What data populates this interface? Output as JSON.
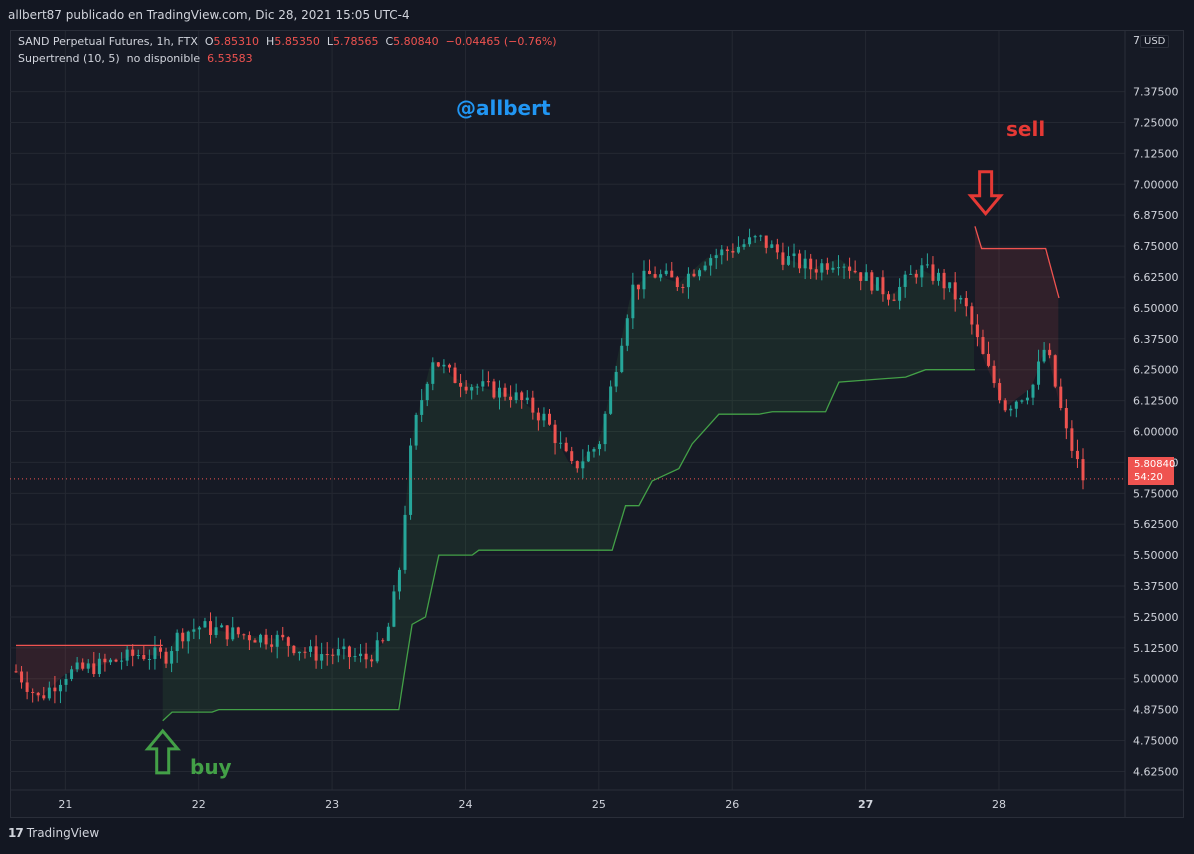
{
  "header": {
    "publish_line": "allbert87 publicado en TradingView.com, Dic 28, 2021 15:05 UTC-4"
  },
  "legend": {
    "symbol": "SAND Perpetual Futures, 1h, FTX",
    "o_label": "O",
    "o_value": "5.85310",
    "h_label": "H",
    "h_value": "5.85350",
    "l_label": "L",
    "l_value": "5.78565",
    "c_label": "C",
    "c_value": "5.80840",
    "change": "−0.04465 (−0.76%)",
    "indicator": "Supertrend (10, 5)",
    "indicator_status": "no disponible",
    "indicator_value": "6.53583"
  },
  "annotations": {
    "handle": "@allbert",
    "sell": "sell",
    "buy": "buy"
  },
  "price_axis": {
    "currency": "USD",
    "last_price": "5.80840",
    "countdown": "54:20",
    "top_label": "7"
  },
  "footer": {
    "brand": "TradingView",
    "logo_mark": "17"
  },
  "colors": {
    "up": "#26a69a",
    "down": "#ef5350",
    "supertrend_up": "#43a047",
    "supertrend_down": "#ef5350",
    "background": "#161a25",
    "grid": "#242832"
  },
  "chart_data": {
    "type": "candlestick",
    "y_axis": {
      "range": [
        4.55,
        7.62
      ],
      "ticks": [
        "7.37500",
        "7.25000",
        "7.12500",
        "7.00000",
        "6.87500",
        "6.75000",
        "6.62500",
        "6.50000",
        "6.37500",
        "6.25000",
        "6.12500",
        "6.00000",
        "5.87500",
        "5.75000",
        "5.62500",
        "5.50000",
        "5.37500",
        "5.25000",
        "5.12500",
        "5.00000",
        "4.87500",
        "4.75000",
        "4.62500"
      ],
      "tick_values": [
        7.375,
        7.25,
        7.125,
        7.0,
        6.875,
        6.75,
        6.625,
        6.5,
        6.375,
        6.25,
        6.125,
        6.0,
        5.875,
        5.75,
        5.625,
        5.5,
        5.375,
        5.25,
        5.125,
        5.0,
        4.875,
        4.75,
        4.625
      ]
    },
    "x_axis": {
      "ticks": [
        "21",
        "22",
        "23",
        "24",
        "25",
        "26",
        "27",
        "28"
      ],
      "tick_days": [
        21,
        22,
        23,
        24,
        25,
        26,
        27,
        28
      ],
      "day_start": 20.63,
      "day_end": 28.63
    },
    "price_path": [
      [
        20.63,
        5.03
      ],
      [
        20.8,
        4.92
      ],
      [
        21.0,
        5.02
      ],
      [
        21.3,
        5.06
      ],
      [
        21.55,
        5.1
      ],
      [
        21.75,
        5.09
      ],
      [
        21.85,
        5.18
      ],
      [
        22.0,
        5.21
      ],
      [
        22.3,
        5.18
      ],
      [
        22.6,
        5.16
      ],
      [
        22.85,
        5.1
      ],
      [
        23.05,
        5.1
      ],
      [
        23.25,
        5.08
      ],
      [
        23.4,
        5.15
      ],
      [
        23.5,
        5.42
      ],
      [
        23.6,
        5.98
      ],
      [
        23.75,
        6.3
      ],
      [
        23.9,
        6.22
      ],
      [
        24.1,
        6.18
      ],
      [
        24.35,
        6.15
      ],
      [
        24.6,
        6.05
      ],
      [
        24.8,
        5.85
      ],
      [
        25.0,
        5.95
      ],
      [
        25.1,
        6.2
      ],
      [
        25.25,
        6.58
      ],
      [
        25.4,
        6.64
      ],
      [
        25.6,
        6.6
      ],
      [
        25.8,
        6.7
      ],
      [
        26.0,
        6.74
      ],
      [
        26.2,
        6.78
      ],
      [
        26.4,
        6.7
      ],
      [
        26.6,
        6.66
      ],
      [
        26.8,
        6.7
      ],
      [
        27.0,
        6.62
      ],
      [
        27.2,
        6.55
      ],
      [
        27.4,
        6.66
      ],
      [
        27.55,
        6.62
      ],
      [
        27.75,
        6.5
      ],
      [
        27.9,
        6.27
      ],
      [
        28.05,
        6.1
      ],
      [
        28.25,
        6.18
      ],
      [
        28.35,
        6.35
      ],
      [
        28.5,
        6.0
      ],
      [
        28.63,
        5.81
      ]
    ],
    "supertrend_down_1": [
      [
        20.63,
        5.135
      ],
      [
        21.73,
        5.135
      ]
    ],
    "supertrend_up": [
      [
        21.73,
        4.83
      ],
      [
        21.8,
        4.865
      ],
      [
        22.1,
        4.865
      ],
      [
        22.15,
        4.875
      ],
      [
        23.5,
        4.875
      ],
      [
        23.55,
        5.05
      ],
      [
        23.6,
        5.22
      ],
      [
        23.7,
        5.25
      ],
      [
        23.8,
        5.5
      ],
      [
        24.05,
        5.5
      ],
      [
        24.1,
        5.52
      ],
      [
        25.1,
        5.52
      ],
      [
        25.2,
        5.7
      ],
      [
        25.3,
        5.7
      ],
      [
        25.4,
        5.8
      ],
      [
        25.6,
        5.85
      ],
      [
        25.7,
        5.95
      ],
      [
        25.8,
        6.01
      ],
      [
        25.9,
        6.07
      ],
      [
        26.2,
        6.07
      ],
      [
        26.3,
        6.08
      ],
      [
        26.7,
        6.08
      ],
      [
        26.8,
        6.2
      ],
      [
        27.3,
        6.22
      ],
      [
        27.45,
        6.25
      ],
      [
        27.82,
        6.25
      ]
    ],
    "supertrend_down_2": [
      [
        27.82,
        6.83
      ],
      [
        27.87,
        6.74
      ],
      [
        28.35,
        6.74
      ],
      [
        28.45,
        6.54
      ]
    ],
    "last_price": 5.8084,
    "markers": [
      {
        "label": "buy",
        "day": 21.73,
        "price": 4.7,
        "direction": "up"
      },
      {
        "label": "sell",
        "day": 27.9,
        "price": 6.97,
        "direction": "down"
      }
    ]
  }
}
